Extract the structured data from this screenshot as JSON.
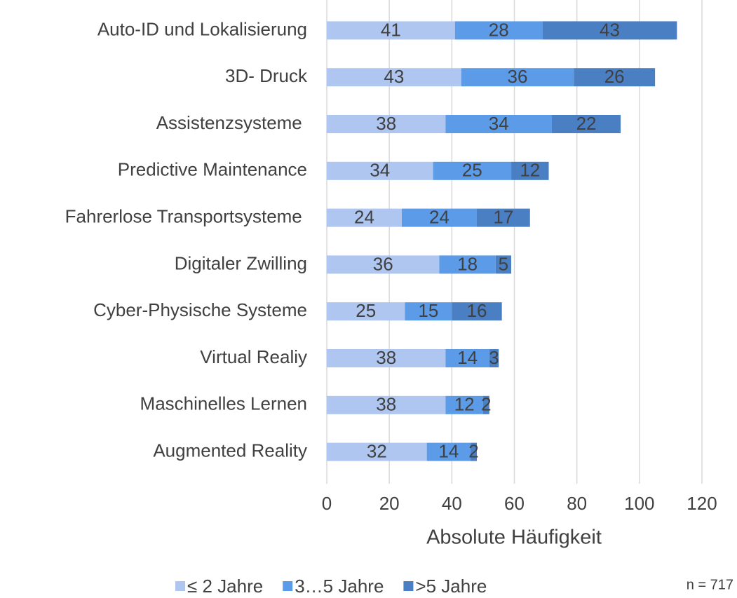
{
  "chart_data": {
    "type": "stacked-barh",
    "xlabel": "Absolute Häufigkeit",
    "annotation": "n = 717",
    "categories": [
      "Auto-ID und Lokalisierung",
      "3D- Druck",
      "Assistenzsysteme ",
      "Predictive Maintenance",
      "Fahrerlose Transportsysteme ",
      "Digitaler Zwilling",
      "Cyber-Physische Systeme",
      "Virtual Realiy",
      "Maschinelles Lernen",
      "Augmented Reality"
    ],
    "series": [
      {
        "name": "≤ 2 Jahre",
        "color": "#aec6f0",
        "values": [
          41,
          43,
          38,
          34,
          24,
          36,
          25,
          38,
          38,
          32
        ]
      },
      {
        "name": "3…5 Jahre",
        "color": "#5b9be8",
        "values": [
          28,
          36,
          34,
          25,
          24,
          18,
          15,
          14,
          12,
          14
        ]
      },
      {
        "name": ">5 Jahre",
        "color": "#4a7fc4",
        "values": [
          43,
          26,
          22,
          12,
          17,
          5,
          16,
          3,
          2,
          2
        ]
      }
    ],
    "xlim": [
      0,
      120
    ],
    "xticks": [
      0,
      20,
      40,
      60,
      80,
      100,
      120
    ],
    "grid": true
  }
}
